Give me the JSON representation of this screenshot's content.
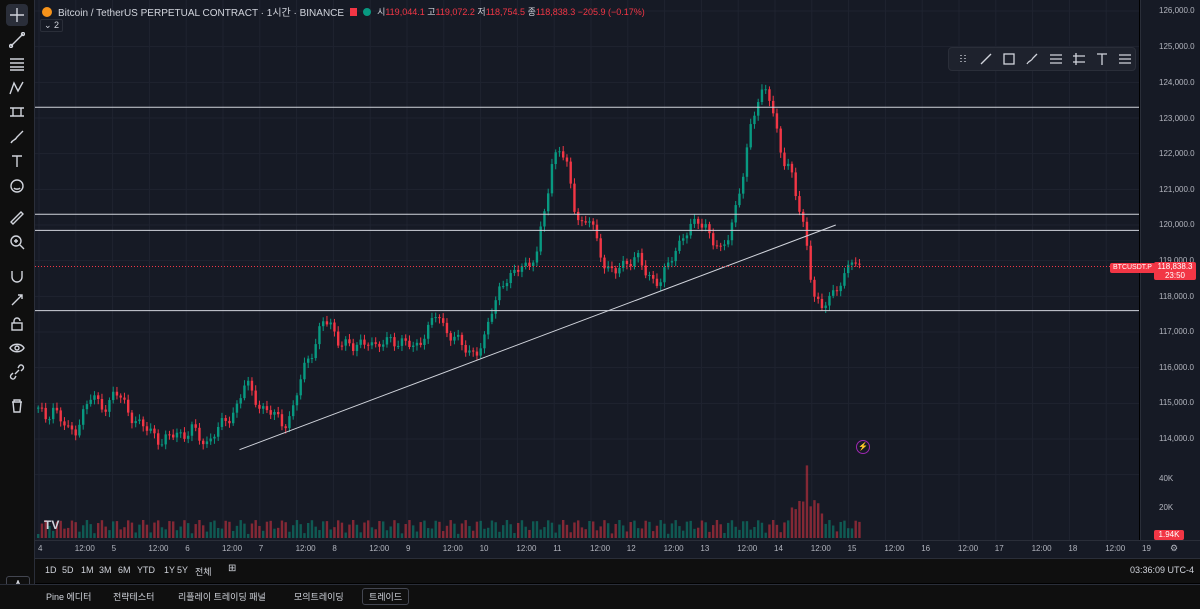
{
  "header": {
    "symbol_title": "Bitcoin / TetherUS PERPETUAL CONTRACT · 1시간 · BINANCE",
    "open_label": "시",
    "open": "119,044.1",
    "high_label": "고",
    "high": "119,072.2",
    "low_label": "저",
    "low": "118,754.5",
    "close_label": "종",
    "close": "118,838.3",
    "change": "−205.9 (−0.17%)",
    "indicators_count": "2"
  },
  "price_axis": [
    "126,000.0",
    "125,000.0",
    "124,000.0",
    "123,000.0",
    "122,000.0",
    "121,000.0",
    "120,000.0",
    "119,000.0",
    "118,000.0",
    "117,000.0",
    "116,000.0",
    "115,000.0",
    "114,000.0",
    "40K",
    "20K"
  ],
  "current_price": {
    "symbol": "BTCUSDT.P",
    "price": "118,838.3",
    "countdown": "23:50"
  },
  "volume_tag": "1.94K",
  "time_axis": [
    "4",
    "12:00",
    "5",
    "12:00",
    "6",
    "12:00",
    "7",
    "12:00",
    "8",
    "12:00",
    "9",
    "12:00",
    "10",
    "12:00",
    "11",
    "12:00",
    "12",
    "12:00",
    "13",
    "12:00",
    "14",
    "12:00",
    "15",
    "12:00",
    "16",
    "12:00",
    "17",
    "12:00",
    "18",
    "12:00",
    "19"
  ],
  "ranges": [
    "1D",
    "5D",
    "1M",
    "3M",
    "6M",
    "YTD",
    "1Y",
    "5Y",
    "전체"
  ],
  "clock": "03:36:09 UTC-4",
  "footer_tabs": [
    "Pine 에디터",
    "전략테스터",
    "리플레이 트레이딩 패널",
    "모의트레이딩",
    "트레이드"
  ],
  "chart_data": {
    "type": "candlestick",
    "ylim": [
      113500,
      126300
    ],
    "close_series": [
      114800,
      114600,
      114900,
      114500,
      114200,
      114300,
      114800,
      115200,
      115000,
      114900,
      115300,
      115100,
      114700,
      114400,
      114300,
      114200,
      113900,
      114000,
      114200,
      114100,
      114300,
      114000,
      113900,
      114200,
      114400,
      114600,
      115000,
      115600,
      115200,
      114900,
      114800,
      114600,
      114400,
      114700,
      115500,
      116200,
      116600,
      117300,
      117200,
      116800,
      116700,
      116500,
      116700,
      116800,
      116500,
      116700,
      116900,
      116600,
      116700,
      116600,
      116800,
      117100,
      117600,
      117100,
      116800,
      116700,
      116500,
      116400,
      116600,
      117600,
      118200,
      118400,
      118600,
      119000,
      118800,
      119200,
      120500,
      121800,
      122100,
      121600,
      120400,
      119900,
      120200,
      119400,
      118800,
      118600,
      118900,
      119000,
      119100,
      118700,
      118500,
      118400,
      118800,
      119300,
      119700,
      119900,
      120100,
      120000,
      119500,
      119200,
      119800,
      120600,
      121500,
      123000,
      123700,
      123800,
      122800,
      121900,
      121600,
      120500,
      119700,
      118100,
      117600,
      117900,
      118300,
      118500,
      119000,
      118838
    ],
    "horizontal_levels": [
      123300,
      120300,
      119850,
      117600
    ],
    "trendline": {
      "from": {
        "i": 54,
        "v": 113700
      },
      "to": {
        "i": 213,
        "v": 120000
      }
    },
    "volume_ylim": [
      0,
      50000
    ]
  }
}
